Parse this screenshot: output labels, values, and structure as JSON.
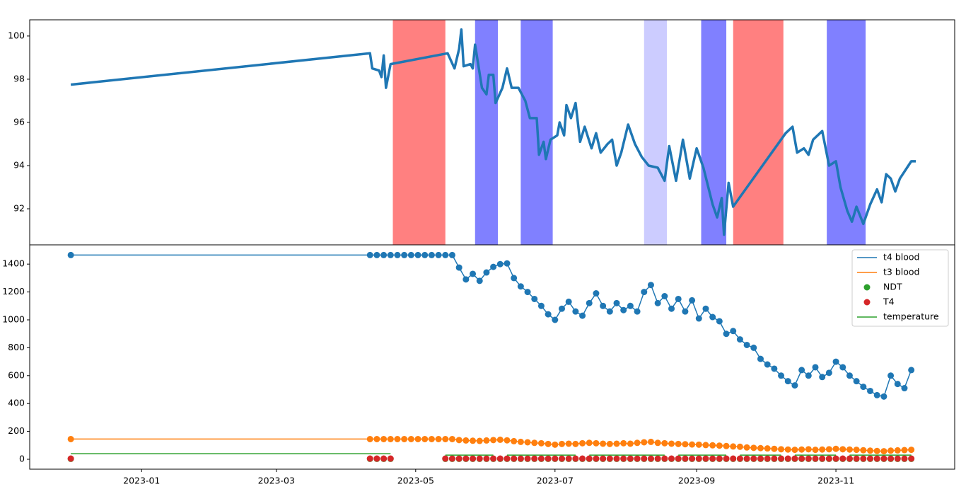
{
  "chart_data": [
    {
      "type": "line",
      "xlim": [
        "2022-11-13",
        "2023-12-23"
      ],
      "ylim": [
        90.33,
        100.75
      ],
      "yticks": [
        92,
        94,
        96,
        98,
        100
      ],
      "spans": [
        {
          "start": "2023-04-21",
          "end": "2023-05-14",
          "color": "#ff8080"
        },
        {
          "start": "2023-05-27",
          "end": "2023-06-06",
          "color": "#8080ff"
        },
        {
          "start": "2023-06-16",
          "end": "2023-06-30",
          "color": "#8080ff"
        },
        {
          "start": "2023-08-09",
          "end": "2023-08-19",
          "color": "#ccccff"
        },
        {
          "start": "2023-09-03",
          "end": "2023-09-14",
          "color": "#8080ff"
        },
        {
          "start": "2023-09-17",
          "end": "2023-10-09",
          "color": "#ff8080"
        },
        {
          "start": "2023-10-28",
          "end": "2023-11-14",
          "color": "#8080ff"
        }
      ],
      "x": [
        "2022-12-01",
        "2023-04-11",
        "2023-04-12",
        "2023-04-15",
        "2023-04-16",
        "2023-04-17",
        "2023-04-18",
        "2023-04-20",
        "2023-05-15",
        "2023-05-18",
        "2023-05-20",
        "2023-05-21",
        "2023-05-22",
        "2023-05-25",
        "2023-05-26",
        "2023-05-27",
        "2023-05-30",
        "2023-06-01",
        "2023-06-02",
        "2023-06-04",
        "2023-06-05",
        "2023-06-08",
        "2023-06-10",
        "2023-06-12",
        "2023-06-15",
        "2023-06-18",
        "2023-06-20",
        "2023-06-23",
        "2023-06-24",
        "2023-06-26",
        "2023-06-27",
        "2023-06-29",
        "2023-07-02",
        "2023-07-03",
        "2023-07-05",
        "2023-07-06",
        "2023-07-08",
        "2023-07-10",
        "2023-07-12",
        "2023-07-14",
        "2023-07-17",
        "2023-07-19",
        "2023-07-21",
        "2023-07-24",
        "2023-07-26",
        "2023-07-28",
        "2023-07-30",
        "2023-08-02",
        "2023-08-05",
        "2023-08-08",
        "2023-08-11",
        "2023-08-15",
        "2023-08-18",
        "2023-08-20",
        "2023-08-23",
        "2023-08-26",
        "2023-08-29",
        "2023-09-01",
        "2023-09-04",
        "2023-09-08",
        "2023-09-10",
        "2023-09-12",
        "2023-09-13",
        "2023-09-15",
        "2023-09-17",
        "2023-10-10",
        "2023-10-13",
        "2023-10-15",
        "2023-10-18",
        "2023-10-20",
        "2023-10-22",
        "2023-10-26",
        "2023-10-29",
        "2023-11-01",
        "2023-11-03",
        "2023-11-06",
        "2023-11-08",
        "2023-11-10",
        "2023-11-13",
        "2023-11-16",
        "2023-11-19",
        "2023-11-21",
        "2023-11-23",
        "2023-11-25",
        "2023-11-27",
        "2023-11-29",
        "2023-12-04",
        "2023-12-06"
      ],
      "series": [
        {
          "color": "#1f77b4",
          "style": "line",
          "values": [
            97.75,
            99.2,
            98.5,
            98.4,
            98.1,
            99.1,
            97.6,
            98.7,
            99.2,
            98.5,
            99.4,
            100.3,
            98.6,
            98.7,
            98.5,
            99.6,
            97.6,
            97.3,
            98.2,
            98.2,
            96.9,
            97.6,
            98.5,
            97.6,
            97.6,
            97.0,
            96.2,
            96.2,
            94.5,
            95.1,
            94.3,
            95.2,
            95.4,
            96.0,
            95.4,
            96.8,
            96.2,
            96.9,
            95.1,
            95.8,
            94.8,
            95.5,
            94.6,
            95.0,
            95.2,
            94.0,
            94.6,
            95.9,
            95.0,
            94.4,
            94.0,
            93.9,
            93.3,
            94.9,
            93.3,
            95.2,
            93.4,
            94.8,
            93.9,
            92.2,
            91.6,
            92.5,
            90.8,
            93.2,
            92.1,
            95.5,
            95.8,
            94.6,
            94.8,
            94.5,
            95.2,
            95.6,
            94.0,
            94.2,
            93.0,
            91.9,
            91.4,
            92.1,
            91.3,
            92.2,
            92.9,
            92.3,
            93.6,
            93.4,
            92.8,
            93.4,
            94.2,
            94.2
          ]
        }
      ]
    },
    {
      "type": "line",
      "xlim": [
        "2022-11-13",
        "2023-12-23"
      ],
      "ylim": [
        -71,
        1538
      ],
      "yticks": [
        0,
        200,
        400,
        600,
        800,
        1000,
        1200,
        1400
      ],
      "xticks": [
        "2023-01",
        "2023-03",
        "2023-05",
        "2023-07",
        "2023-09",
        "2023-11"
      ],
      "legend": "upper right",
      "x": [
        "2022-12-01",
        "2023-04-11",
        "2023-04-14",
        "2023-04-17",
        "2023-04-20",
        "2023-04-23",
        "2023-04-26",
        "2023-04-29",
        "2023-05-02",
        "2023-05-05",
        "2023-05-08",
        "2023-05-11",
        "2023-05-14",
        "2023-05-17",
        "2023-05-20",
        "2023-05-23",
        "2023-05-26",
        "2023-05-29",
        "2023-06-01",
        "2023-06-04",
        "2023-06-07",
        "2023-06-10",
        "2023-06-13",
        "2023-06-16",
        "2023-06-19",
        "2023-06-22",
        "2023-06-25",
        "2023-06-28",
        "2023-07-01",
        "2023-07-04",
        "2023-07-07",
        "2023-07-10",
        "2023-07-13",
        "2023-07-16",
        "2023-07-19",
        "2023-07-22",
        "2023-07-25",
        "2023-07-28",
        "2023-07-31",
        "2023-08-03",
        "2023-08-06",
        "2023-08-09",
        "2023-08-12",
        "2023-08-15",
        "2023-08-18",
        "2023-08-21",
        "2023-08-24",
        "2023-08-27",
        "2023-08-30",
        "2023-09-02",
        "2023-09-05",
        "2023-09-08",
        "2023-09-11",
        "2023-09-14",
        "2023-09-17",
        "2023-09-20",
        "2023-09-23",
        "2023-09-26",
        "2023-09-29",
        "2023-10-02",
        "2023-10-05",
        "2023-10-08",
        "2023-10-11",
        "2023-10-14",
        "2023-10-17",
        "2023-10-20",
        "2023-10-23",
        "2023-10-26",
        "2023-10-29",
        "2023-11-01",
        "2023-11-04",
        "2023-11-07",
        "2023-11-10",
        "2023-11-13",
        "2023-11-16",
        "2023-11-19",
        "2023-11-22",
        "2023-11-25",
        "2023-11-28",
        "2023-12-01",
        "2023-12-04"
      ],
      "series": [
        {
          "name": "t4 blood",
          "color": "#1f77b4",
          "style": "line+marker",
          "values": [
            1465,
            1465,
            1465,
            1465,
            1465,
            1465,
            1465,
            1465,
            1465,
            1465,
            1465,
            1465,
            1465,
            1465,
            1375,
            1290,
            1330,
            1280,
            1340,
            1380,
            1400,
            1405,
            1300,
            1240,
            1200,
            1150,
            1100,
            1040,
            1000,
            1080,
            1130,
            1060,
            1030,
            1120,
            1190,
            1100,
            1060,
            1120,
            1070,
            1100,
            1060,
            1200,
            1250,
            1120,
            1170,
            1080,
            1150,
            1060,
            1140,
            1010,
            1080,
            1020,
            990,
            900,
            920,
            860,
            820,
            800,
            720,
            680,
            650,
            600,
            560,
            530,
            640,
            600,
            660,
            590,
            620,
            700,
            660,
            600,
            560,
            520,
            490,
            460,
            450,
            600,
            540,
            510,
            640
          ]
        },
        {
          "name": "t3 blood",
          "color": "#ff7f0e",
          "style": "line+marker",
          "values": [
            145,
            145,
            145,
            145,
            145,
            145,
            145,
            145,
            145,
            145,
            145,
            145,
            145,
            145,
            138,
            135,
            133,
            132,
            135,
            138,
            140,
            136,
            130,
            125,
            122,
            118,
            115,
            110,
            105,
            110,
            112,
            110,
            115,
            118,
            115,
            112,
            110,
            112,
            115,
            112,
            118,
            122,
            125,
            118,
            115,
            112,
            110,
            108,
            106,
            105,
            102,
            100,
            98,
            95,
            92,
            90,
            85,
            82,
            80,
            78,
            75,
            72,
            70,
            68,
            70,
            72,
            68,
            70,
            72,
            75,
            72,
            70,
            68,
            65,
            62,
            60,
            58,
            62,
            64,
            66,
            68
          ]
        },
        {
          "name": "NDT",
          "color": "#2ca02c",
          "style": "scatter",
          "values": [
            3,
            3,
            3,
            3,
            3,
            null,
            null,
            null,
            null,
            null,
            null,
            null,
            3,
            3,
            3,
            3,
            3,
            3,
            3,
            3,
            3,
            3,
            3,
            3,
            3,
            3,
            3,
            3,
            3,
            3,
            3,
            3,
            3,
            3,
            3,
            3,
            3,
            3,
            3,
            3,
            3,
            3,
            3,
            3,
            3,
            3,
            3,
            3,
            3,
            3,
            3,
            3,
            3,
            3,
            3,
            3,
            3,
            3,
            3,
            3,
            3,
            3,
            3,
            3,
            3,
            3,
            3,
            3,
            3,
            3,
            3,
            3,
            3,
            3,
            3,
            3,
            3,
            3,
            3,
            3,
            3
          ]
        },
        {
          "name": "T4",
          "color": "#d62728",
          "style": "scatter",
          "values": [
            5,
            5,
            5,
            5,
            5,
            null,
            null,
            null,
            null,
            null,
            null,
            null,
            5,
            5,
            5,
            5,
            5,
            5,
            5,
            5,
            5,
            5,
            5,
            5,
            5,
            5,
            5,
            5,
            5,
            5,
            5,
            5,
            5,
            5,
            5,
            5,
            5,
            5,
            5,
            5,
            5,
            5,
            5,
            5,
            5,
            5,
            5,
            5,
            5,
            5,
            5,
            5,
            5,
            5,
            5,
            5,
            5,
            5,
            5,
            5,
            5,
            5,
            5,
            5,
            5,
            5,
            5,
            5,
            5,
            5,
            5,
            5,
            5,
            5,
            5,
            5,
            5,
            5,
            5,
            5,
            5
          ]
        },
        {
          "name": "temperature",
          "color": "#2ca02c",
          "style": "line",
          "values": [
            40,
            40,
            40,
            40,
            40,
            null,
            null,
            null,
            null,
            null,
            null,
            null,
            30,
            30,
            30,
            30,
            30,
            30,
            30,
            30,
            null,
            30,
            30,
            30,
            30,
            30,
            30,
            30,
            30,
            30,
            30,
            30,
            null,
            30,
            30,
            30,
            30,
            30,
            30,
            30,
            30,
            30,
            30,
            30,
            30,
            null,
            30,
            30,
            30,
            30,
            30,
            30,
            30,
            30,
            null,
            30,
            30,
            30,
            30,
            30,
            30,
            30,
            null,
            30,
            30,
            30,
            30,
            30,
            30,
            30,
            null,
            30,
            30,
            30,
            30,
            30,
            30,
            30,
            30,
            30,
            30
          ]
        }
      ]
    }
  ]
}
